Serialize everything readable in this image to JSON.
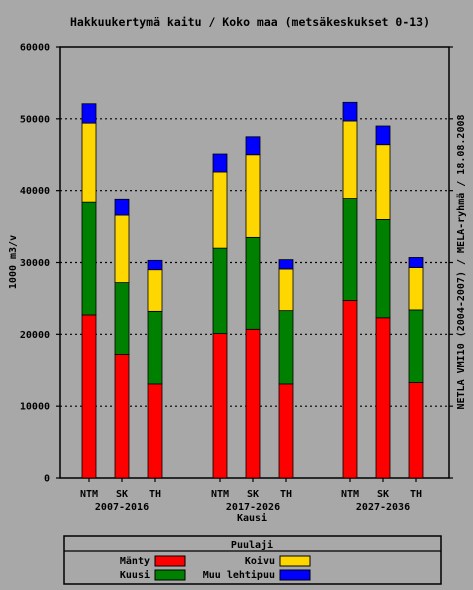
{
  "chart_data": {
    "type": "bar",
    "stacked": true,
    "title": "Hakkuukertymä kaitu / Koko maa (metsäkeskukset 0-13)",
    "ylabel": "1000 m3/v",
    "right_label": "NETLA VMI10 (2004-2007) / MELA-ryhmä / 18.08.2008",
    "xlabel": "Kausi",
    "ylim": [
      0,
      60000
    ],
    "yticks": [
      "0",
      "10000",
      "20000",
      "30000",
      "40000",
      "50000",
      "60000"
    ],
    "grid": true,
    "groups": [
      {
        "label": "2007-2016",
        "categories": [
          "NTM",
          "SK",
          "TH"
        ]
      },
      {
        "label": "2017-2026",
        "categories": [
          "NTM",
          "SK",
          "TH"
        ]
      },
      {
        "label": "2027-2036",
        "categories": [
          "NTM",
          "SK",
          "TH"
        ]
      }
    ],
    "series": [
      {
        "name": "Mänty",
        "color": "#ff0000",
        "values": [
          22700,
          17200,
          13100,
          20100,
          20700,
          13100,
          24700,
          22300,
          13300
        ]
      },
      {
        "name": "Kuusi",
        "color": "#008000",
        "values": [
          15700,
          10000,
          10100,
          11900,
          12800,
          10200,
          14200,
          13700,
          10100
        ]
      },
      {
        "name": "Koivu",
        "color": "#ffd700",
        "values": [
          11000,
          9400,
          5800,
          10600,
          11500,
          5800,
          10800,
          10400,
          5900
        ]
      },
      {
        "name": "Muu lehtipuu",
        "color": "#0000ff",
        "values": [
          2700,
          2200,
          1300,
          2500,
          2500,
          1300,
          2600,
          2600,
          1400
        ]
      }
    ],
    "legend": {
      "title": "Puulaji",
      "placement": "bottom"
    }
  }
}
